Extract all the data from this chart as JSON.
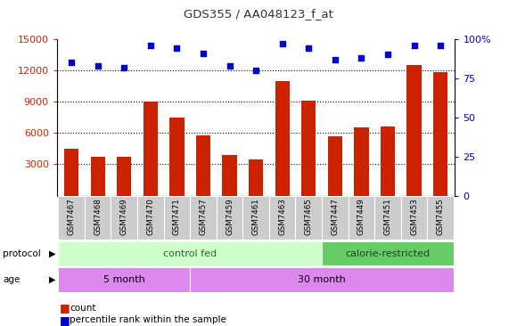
{
  "title": "GDS355 / AA048123_f_at",
  "samples": [
    "GSM7467",
    "GSM7468",
    "GSM7469",
    "GSM7470",
    "GSM7471",
    "GSM7457",
    "GSM7459",
    "GSM7461",
    "GSM7463",
    "GSM7465",
    "GSM7447",
    "GSM7449",
    "GSM7451",
    "GSM7453",
    "GSM7455"
  ],
  "counts": [
    4500,
    3700,
    3700,
    9000,
    7500,
    5800,
    3900,
    3500,
    11000,
    9100,
    5700,
    6500,
    6600,
    12500,
    11800
  ],
  "percentiles": [
    85,
    83,
    82,
    96,
    94,
    91,
    83,
    80,
    97,
    94,
    87,
    88,
    90,
    96,
    96
  ],
  "bar_color": "#cc2200",
  "dot_color": "#0000cc",
  "ylim_left": [
    0,
    15000
  ],
  "ylim_right": [
    0,
    100
  ],
  "yticks_left": [
    3000,
    6000,
    9000,
    12000,
    15000
  ],
  "yticks_right": [
    0,
    25,
    50,
    75,
    100
  ],
  "grid_yticks": [
    3000,
    6000,
    9000,
    12000
  ],
  "protocol_groups": {
    "control fed": [
      0,
      9
    ],
    "calorie-restricted": [
      10,
      14
    ]
  },
  "age_groups": {
    "5 month": [
      0,
      4
    ],
    "30 month": [
      5,
      14
    ]
  },
  "protocol_colors": {
    "control fed": "#ccffcc",
    "calorie-restricted": "#66cc66"
  },
  "age_color": "#dd88ee",
  "bar_color_legend": "#cc2200",
  "dot_color_legend": "#0000cc",
  "tick_bg_color": "#cccccc",
  "bg_color": "#ffffff"
}
